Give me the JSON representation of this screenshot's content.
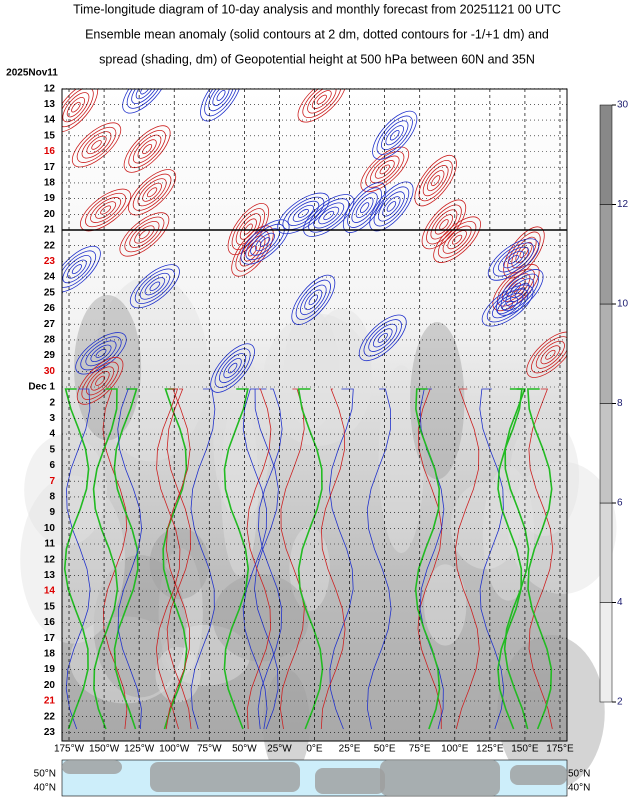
{
  "chart_data": {
    "type": "heatmap",
    "title_lines": [
      "Time-longitude diagram of 10-day analysis and monthly forecast from 20251121 00 UTC",
      "Ensemble mean anomaly (solid contours at 2 dm, dotted contours for -1/+1 dm) and",
      "spread (shading, dm) of Geopotential height at 500 hPa between 60N and 35N"
    ],
    "xlim": [
      -180,
      180
    ],
    "xticks": [
      {
        "value": -175,
        "label": "175°W"
      },
      {
        "value": -150,
        "label": "150°W"
      },
      {
        "value": -125,
        "label": "125°W"
      },
      {
        "value": -100,
        "label": "100°W"
      },
      {
        "value": -75,
        "label": "75°W"
      },
      {
        "value": -50,
        "label": "50°W"
      },
      {
        "value": -25,
        "label": "25°W"
      },
      {
        "value": 0,
        "label": "0°E"
      },
      {
        "value": 25,
        "label": "25°E"
      },
      {
        "value": 50,
        "label": "50°E"
      },
      {
        "value": 75,
        "label": "75°E"
      },
      {
        "value": 100,
        "label": "100°E"
      },
      {
        "value": 125,
        "label": "125°E"
      },
      {
        "value": 150,
        "label": "150°E"
      },
      {
        "value": 175,
        "label": "175°E"
      }
    ],
    "categories": [
      "2025Nov11",
      "12",
      "13",
      "14",
      "15",
      "16",
      "17",
      "18",
      "19",
      "20",
      "21",
      "22",
      "23",
      "24",
      "25",
      "26",
      "27",
      "28",
      "29",
      "30",
      "Dec 1",
      "2",
      "3",
      "4",
      "5",
      "6",
      "7",
      "8",
      "9",
      "10",
      "11",
      "12",
      "13",
      "14",
      "15",
      "16",
      "17",
      "18",
      "19",
      "20",
      "21",
      "22",
      "23"
    ],
    "category_colors": [
      "#000",
      "#000",
      "#000",
      "#000",
      "#000",
      "#d00",
      "#000",
      "#000",
      "#000",
      "#000",
      "#000",
      "#000",
      "#d00",
      "#000",
      "#000",
      "#000",
      "#000",
      "#000",
      "#000",
      "#d00",
      "#000",
      "#000",
      "#000",
      "#000",
      "#000",
      "#000",
      "#d00",
      "#000",
      "#000",
      "#000",
      "#000",
      "#000",
      "#000",
      "#d00",
      "#000",
      "#000",
      "#000",
      "#000",
      "#000",
      "#000",
      "#d00",
      "#000",
      "#000"
    ],
    "colorbar": {
      "levels": [
        2,
        4,
        6,
        8,
        10,
        12,
        30
      ],
      "colors": [
        "#eeeeee",
        "#d8d8d8",
        "#c4c4c4",
        "#b0b0b0",
        "#9c9c9c",
        "#888888"
      ]
    },
    "map_labels": [
      "50°N",
      "40°N"
    ]
  }
}
